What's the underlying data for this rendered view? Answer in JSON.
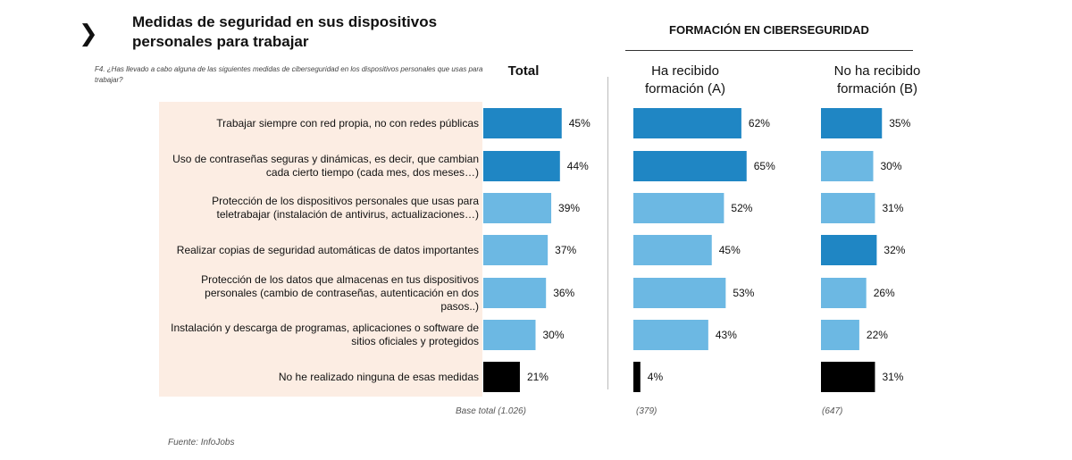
{
  "header": {
    "chevron": "❯",
    "title": "Medidas de seguridad en sus dispositivos personales para trabajar",
    "question": "F4. ¿Has llevado a cabo alguna de las siguientes medidas de ciberseguridad en los dispositivos personales que usas para trabajar?"
  },
  "section_title": "FORMACIÓN EN CIBERSEGURIDAD",
  "footer": {
    "base_total": "Base total (1.026)",
    "base_a": "(379)",
    "base_b": "(647)",
    "source": "Fuente: InfoJobs"
  },
  "colors": {
    "dark_blue": "#1f86c4",
    "light_blue": "#6cb8e3",
    "black": "#000000",
    "panel": "#fcede3"
  },
  "chart_data": {
    "type": "bar",
    "orientation": "horizontal",
    "title": "Medidas de seguridad en sus dispositivos personales para trabajar",
    "categories": [
      "Trabajar siempre con red propia, no con redes públicas",
      "Uso de contraseñas seguras y dinámicas, es decir, que cambian cada cierto tiempo (cada mes, dos meses…)",
      "Protección de los dispositivos personales que usas para teletrabajar (instalación de antivirus, actualizaciones…)",
      "Realizar copias de seguridad automáticas de datos importantes",
      "Protección de los datos que almacenas en tus dispositivos personales (cambio de contraseñas, autenticación en dos pasos..)",
      "Instalación y descarga de programas, aplicaciones o software de sitios oficiales y protegidos",
      "No he realizado ninguna de esas medidas"
    ],
    "series": [
      {
        "name": "Total",
        "values": [
          45,
          44,
          39,
          37,
          36,
          30,
          21
        ],
        "colors": [
          "dark",
          "dark",
          "light",
          "light",
          "light",
          "light",
          "black"
        ]
      },
      {
        "name": "Ha recibido formación (A)",
        "values": [
          62,
          65,
          52,
          45,
          53,
          43,
          4
        ],
        "colors": [
          "dark",
          "dark",
          "light",
          "light",
          "light",
          "light",
          "black"
        ]
      },
      {
        "name": "No ha recibido formación (B)",
        "values": [
          35,
          30,
          31,
          32,
          26,
          22,
          31
        ],
        "colors": [
          "dark",
          "light",
          "light",
          "dark",
          "light",
          "light",
          "black"
        ]
      }
    ],
    "value_suffix": "%",
    "ylim": [
      0,
      100
    ]
  }
}
